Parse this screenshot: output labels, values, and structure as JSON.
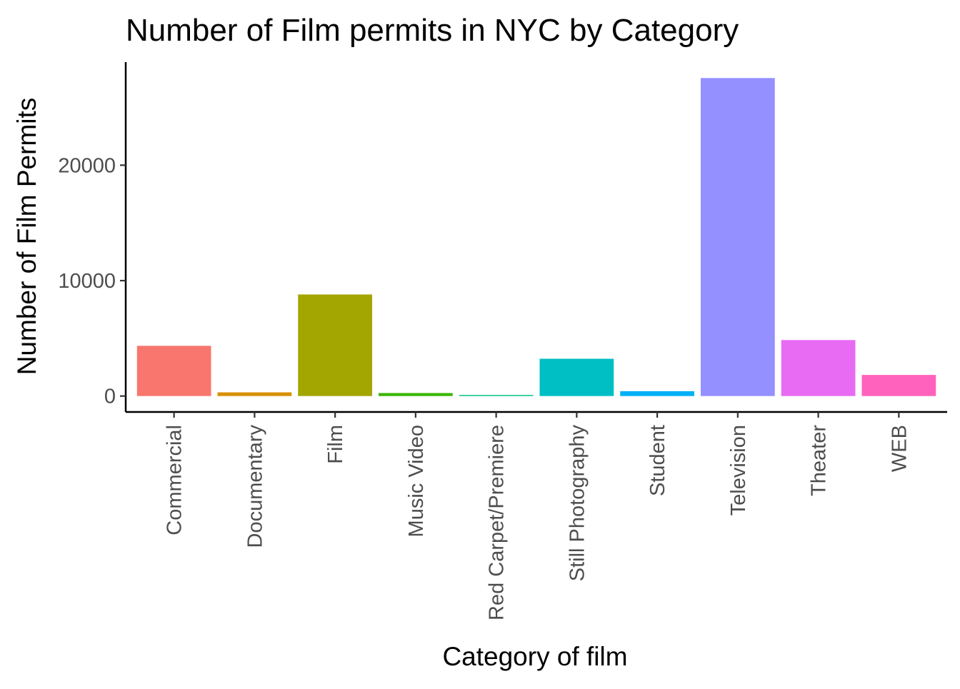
{
  "chart_data": {
    "type": "bar",
    "title": "Number of Film permits in NYC by Category",
    "xlabel": "Category of film",
    "ylabel": "Number of Film Permits",
    "categories": [
      "Commercial",
      "Documentary",
      "Film",
      "Music Video",
      "Red Carpet/Premiere",
      "Still Photography",
      "Student",
      "Television",
      "Theater",
      "WEB"
    ],
    "values": [
      4350,
      320,
      8800,
      260,
      90,
      3230,
      420,
      27550,
      4850,
      1830
    ],
    "colors": [
      "#F8766D",
      "#D89000",
      "#A3A500",
      "#39B600",
      "#00BF7D",
      "#00BFC4",
      "#00B0F6",
      "#9590FF",
      "#E76BF3",
      "#FF62BC"
    ],
    "ylim": [
      -1380,
      28930
    ],
    "yticks": [
      0,
      10000,
      20000
    ],
    "ytick_labels": [
      "0",
      "10000",
      "20000"
    ],
    "grid": false,
    "legend": "none"
  }
}
